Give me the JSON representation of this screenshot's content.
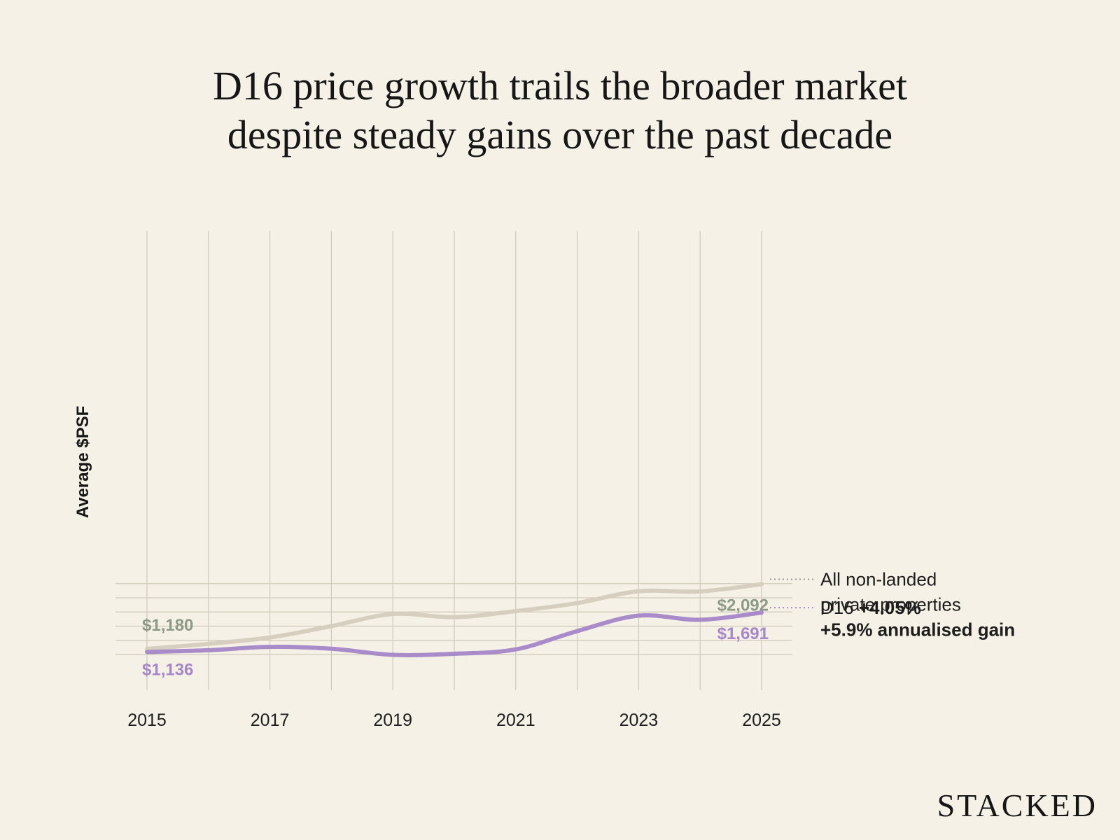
{
  "title_lines": [
    "D16 price growth trails the broader market",
    "despite steady gains over the past decade"
  ],
  "logo": "STACKED",
  "colors": {
    "background": "#f5f1e6",
    "market": "#d6cfc0",
    "market_label": "#8c9a86",
    "d16": "#a98bc9",
    "d16_label": "#a687c8",
    "grid": "#cfc9b9"
  },
  "chart_data": {
    "type": "line",
    "title": "D16 price growth trails the broader market despite steady gains over the past decade",
    "xlabel": "",
    "ylabel": "Average $PSF",
    "x": [
      2015,
      2016,
      2017,
      2018,
      2019,
      2020,
      2021,
      2022,
      2023,
      2024,
      2025
    ],
    "x_ticks": [
      "2015",
      "2017",
      "2019",
      "2021",
      "2023",
      "2025"
    ],
    "ylim": [
      1000,
      2200
    ],
    "grid": true,
    "series": [
      {
        "name": "All non-landed private properties",
        "values": [
          1180,
          1250,
          1340,
          1500,
          1672,
          1627,
          1712,
          1825,
          1993,
          1990,
          2092
        ],
        "start_label": "$1,180",
        "end_label": "$2,092",
        "legend_lines": [
          "All non-landed",
          "private properties"
        ],
        "legend_strong": "+5.9% annualised gain"
      },
      {
        "name": "D16",
        "values": [
          1136,
          1160,
          1208,
          1181,
          1095,
          1110,
          1172,
          1430,
          1648,
          1590,
          1691
        ],
        "start_label": "$1,136",
        "end_label": "$1,691",
        "legend_lines": [
          "D16"
        ],
        "legend_strong": "+4.05%"
      }
    ]
  }
}
